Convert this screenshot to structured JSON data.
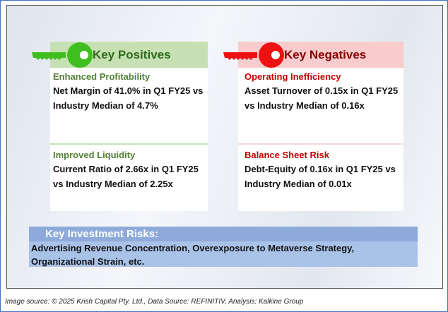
{
  "positives": {
    "title": "Key Positives",
    "items": [
      {
        "heading": "Enhanced Profitability",
        "text": "Net Margin of 41.0% in Q1 FY25 vs Industry Median of 4.7%"
      },
      {
        "heading": "Improved Liquidity",
        "text": "Current Ratio of 2.66x in Q1 FY25 vs Industry Median of 2.25x"
      }
    ]
  },
  "negatives": {
    "title": "Key Negatives",
    "items": [
      {
        "heading": "Operating Inefficiency",
        "text": "Asset Turnover of 0.15x in Q1 FY25 vs Industry Median of 0.16x"
      },
      {
        "heading": "Balance Sheet Risk",
        "text": "Debt-Equity of 0.16x in Q1 FY25 vs Industry Median of 0.01x"
      }
    ]
  },
  "risks": {
    "title": "Key Investment Risks:",
    "text": "Advertising Revenue Concentration, Overexposure to Metaverse Strategy, Organizational Strain, etc."
  },
  "footer": "Image source: © 2025 Krish Capital Pty. Ltd., Data Source: REFINITIV, Analysis: Kalkine Group",
  "colors": {
    "positive": "#3fbf1f",
    "negative": "#ee1111"
  }
}
